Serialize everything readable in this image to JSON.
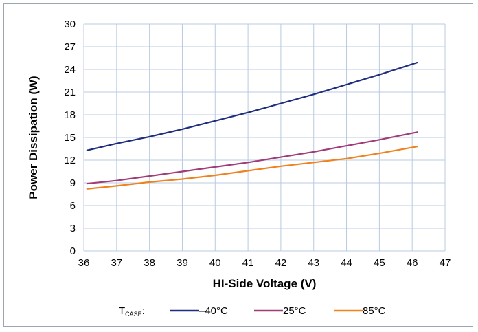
{
  "chart_data": {
    "type": "line",
    "xlabel": "HI-Side Voltage (V)",
    "ylabel": "Power Dissipation (W)",
    "xlim": [
      36,
      47
    ],
    "ylim": [
      0,
      30
    ],
    "x_ticks": [
      "36",
      "37",
      "38",
      "39",
      "40",
      "41",
      "42",
      "43",
      "44",
      "45",
      "46",
      "47"
    ],
    "y_ticks": [
      "0",
      "3",
      "6",
      "9",
      "12",
      "15",
      "18",
      "21",
      "24",
      "27",
      "30"
    ],
    "grid": true,
    "legend": {
      "label_main": "T",
      "label_sub": "CASE",
      "label_suffix": ":",
      "placement": "bottom"
    },
    "series": [
      {
        "name": "–40°C",
        "color": "#1f2d7d",
        "x": [
          36.1,
          37,
          38,
          39,
          40,
          41,
          42,
          43,
          44,
          45,
          46.15
        ],
        "y": [
          13.3,
          14.2,
          15.1,
          16.1,
          17.2,
          18.3,
          19.5,
          20.7,
          22.0,
          23.3,
          24.9
        ]
      },
      {
        "name": "25°C",
        "color": "#a03c78",
        "x": [
          36.1,
          37,
          38,
          39,
          40,
          41,
          42,
          43,
          44,
          45,
          46.15
        ],
        "y": [
          8.9,
          9.3,
          9.9,
          10.5,
          11.1,
          11.7,
          12.4,
          13.1,
          13.9,
          14.7,
          15.7
        ]
      },
      {
        "name": "85°C",
        "color": "#f0821e",
        "x": [
          36.1,
          37,
          38,
          39,
          40,
          41,
          42,
          43,
          44,
          45,
          46.15
        ],
        "y": [
          8.2,
          8.6,
          9.1,
          9.5,
          10.0,
          10.6,
          11.2,
          11.7,
          12.2,
          12.9,
          13.8
        ]
      }
    ]
  }
}
